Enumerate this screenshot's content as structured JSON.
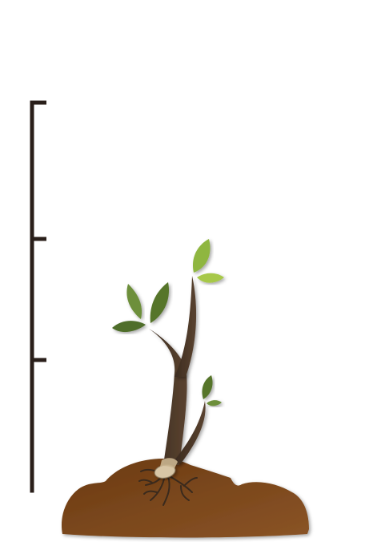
{
  "illustration": {
    "subject": "seedling-in-soil",
    "has_visible_text": false,
    "colors": {
      "ruler": "#2a1f1a",
      "soil_dark": "#6b3a12",
      "soil_light": "#8a5426",
      "stem_dark": "#3b2b1f",
      "stem_light": "#5a4330",
      "leaf_dark": "#4f6e2a",
      "leaf_mid": "#6d8f3a",
      "leaf_light": "#a7c84a",
      "seed": "#d8c6a6",
      "root": "#3a2a1d"
    }
  }
}
